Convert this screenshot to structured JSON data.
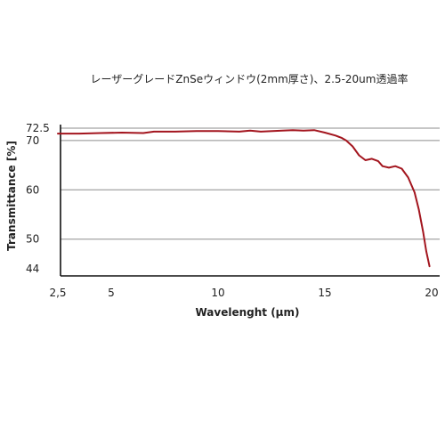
{
  "caption": "レーザーグレードZnSeウィンドウ(2mm厚さ)、2.5-20um透過率",
  "chart_data": {
    "type": "line",
    "title": "レーザーグレードZnSeウィンドウ(2mm厚さ)、2.5-20um透過率",
    "xlabel": "Wavelenght (µm)",
    "ylabel": "Transmittance [%]",
    "xlim": [
      2.5,
      20
    ],
    "ylim": [
      44,
      72.5
    ],
    "x_ticks": [
      {
        "value": 2.5,
        "label": "2,5"
      },
      {
        "value": 5,
        "label": "5"
      },
      {
        "value": 10,
        "label": "10"
      },
      {
        "value": 15,
        "label": "15"
      },
      {
        "value": 20,
        "label": "20"
      }
    ],
    "y_ticks": [
      {
        "value": 72.5,
        "label": "72.5"
      },
      {
        "value": 70,
        "label": "70"
      },
      {
        "value": 60,
        "label": "60"
      },
      {
        "value": 50,
        "label": "50"
      },
      {
        "value": 44,
        "label": "44"
      }
    ],
    "gridlines_y": [
      72.5,
      70,
      60,
      50
    ],
    "series": [
      {
        "color": "#a3151e",
        "points": [
          [
            2.5,
            71.4
          ],
          [
            3.5,
            71.4
          ],
          [
            4.5,
            71.5
          ],
          [
            5.5,
            71.6
          ],
          [
            6.5,
            71.5
          ],
          [
            7.0,
            71.8
          ],
          [
            8.0,
            71.8
          ],
          [
            9.0,
            71.9
          ],
          [
            10.0,
            71.9
          ],
          [
            11.0,
            71.8
          ],
          [
            11.5,
            72.0
          ],
          [
            12.0,
            71.8
          ],
          [
            13.0,
            72.0
          ],
          [
            13.5,
            72.1
          ],
          [
            14.0,
            72.0
          ],
          [
            14.5,
            72.1
          ],
          [
            15.0,
            71.6
          ],
          [
            15.5,
            71.0
          ],
          [
            15.8,
            70.5
          ],
          [
            16.0,
            70.0
          ],
          [
            16.3,
            68.8
          ],
          [
            16.6,
            67.0
          ],
          [
            16.9,
            66.0
          ],
          [
            17.2,
            66.3
          ],
          [
            17.5,
            65.8
          ],
          [
            17.7,
            64.8
          ],
          [
            18.0,
            64.5
          ],
          [
            18.3,
            64.8
          ],
          [
            18.6,
            64.3
          ],
          [
            18.9,
            62.5
          ],
          [
            19.2,
            59.5
          ],
          [
            19.4,
            56.0
          ],
          [
            19.6,
            51.5
          ],
          [
            19.75,
            47.5
          ],
          [
            19.9,
            44.5
          ]
        ]
      }
    ]
  }
}
